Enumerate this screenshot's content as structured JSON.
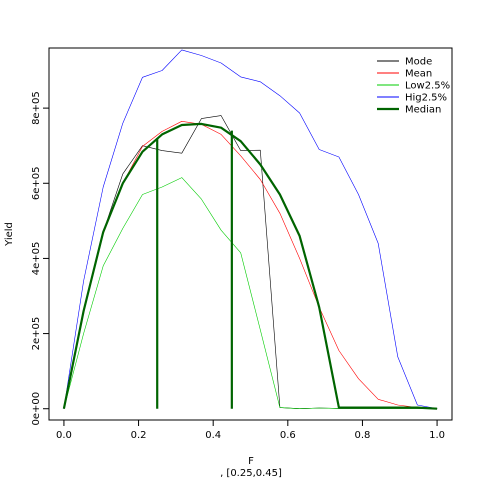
{
  "chart_data": {
    "type": "line",
    "title": "",
    "xlabel": "F",
    "subtitle": ", [0.25,0.45]",
    "ylabel": "Yield",
    "xlim": [
      -0.04,
      1.04
    ],
    "ylim": [
      -30000,
      960000
    ],
    "x_ticks": [
      0.0,
      0.2,
      0.4,
      0.6,
      0.8,
      1.0
    ],
    "x_tick_labels": [
      "0.0",
      "0.2",
      "0.4",
      "0.6",
      "0.8",
      "1.0"
    ],
    "y_ticks": [
      0,
      200000,
      400000,
      600000,
      800000
    ],
    "y_tick_labels": [
      "0e+00",
      "2e+05",
      "4e+05",
      "6e+05",
      "8e+05"
    ],
    "grid": false,
    "legend_position": "top-right",
    "x": [
      0.0,
      0.0526,
      0.1053,
      0.1579,
      0.2105,
      0.2632,
      0.3158,
      0.3684,
      0.4211,
      0.4737,
      0.5263,
      0.5789,
      0.6316,
      0.6842,
      0.7368,
      0.7895,
      0.8421,
      0.8947,
      0.9474,
      1.0
    ],
    "series": [
      {
        "name": "Mode",
        "color": "#000000",
        "width": 0.6,
        "values": [
          0,
          260000,
          470000,
          625000,
          700000,
          687000,
          680000,
          772000,
          780000,
          687000,
          688000,
          3000,
          0,
          2000,
          1000,
          1000,
          1000,
          1000,
          1000,
          0
        ]
      },
      {
        "name": "Mean",
        "color": "#ff0000",
        "width": 0.6,
        "values": [
          0,
          260000,
          465000,
          600000,
          698000,
          738000,
          765000,
          757000,
          730000,
          673000,
          610000,
          520000,
          400000,
          270000,
          155000,
          80000,
          25000,
          10000,
          3000,
          0
        ]
      },
      {
        "name": "Low2.5%",
        "color": "#00cc00",
        "width": 0.6,
        "values": [
          0,
          200000,
          380000,
          480000,
          570000,
          590000,
          615000,
          558000,
          475000,
          415000,
          210000,
          3000,
          0,
          2000,
          1000,
          1000,
          1000,
          1000,
          1000,
          0
        ]
      },
      {
        "name": "Hig2.5%",
        "color": "#0000ff",
        "width": 0.6,
        "values": [
          0,
          340000,
          590000,
          760000,
          882000,
          900000,
          955000,
          940000,
          920000,
          883000,
          870000,
          833000,
          787000,
          690000,
          670000,
          570000,
          440000,
          138000,
          10000,
          0
        ]
      },
      {
        "name": "Median",
        "color": "#006400",
        "width": 2.2,
        "values": [
          0,
          260000,
          470000,
          600000,
          684000,
          730000,
          755000,
          758000,
          748000,
          712000,
          650000,
          570000,
          460000,
          270000,
          3000,
          3000,
          3000,
          3000,
          3000,
          0
        ]
      }
    ],
    "vlines": [
      {
        "x": 0.25,
        "y": 720000,
        "color": "#006400"
      },
      {
        "x": 0.45,
        "y": 740000,
        "color": "#006400"
      }
    ]
  }
}
